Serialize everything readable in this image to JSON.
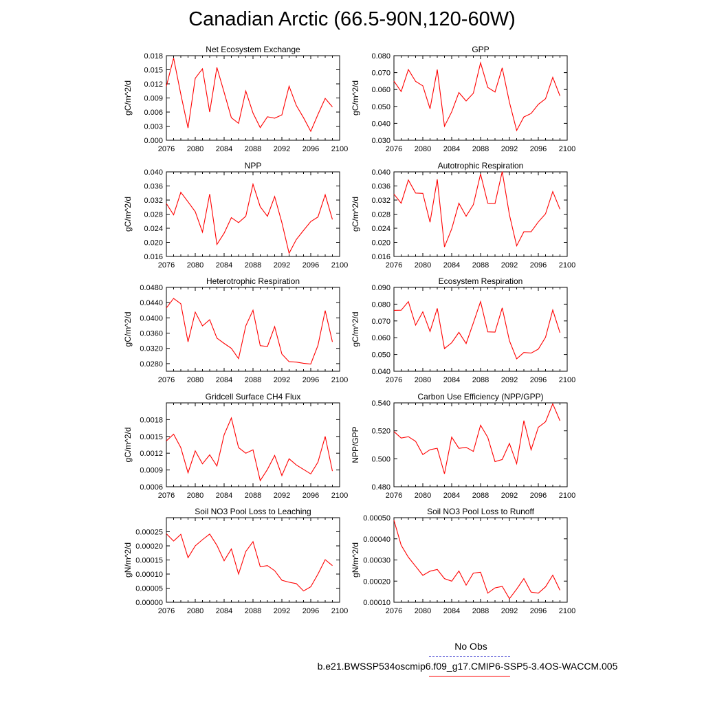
{
  "title": "Canadian Arctic (66.5-90N,120-60W)",
  "legend": {
    "items": [
      {
        "label": "No Obs",
        "color": "#3333cc",
        "style": "dashed"
      },
      {
        "label": "b.e21.BWSSP534oscmip6.f09_g17.CMIP6-SSP5-3.4OS-WACCM.005",
        "color": "#ff0000",
        "style": "solid"
      }
    ]
  },
  "chart_data": [
    {
      "type": "line",
      "title": "Net Ecosystem Exchange",
      "ylabel": "gC/m^2/d",
      "xlim": [
        2076,
        2100
      ],
      "xticks": [
        "2076",
        "2080",
        "2084",
        "2088",
        "2092",
        "2096",
        "2100"
      ],
      "ylim": [
        0.0,
        0.018
      ],
      "yticks": [
        "0.000",
        "0.003",
        "0.006",
        "0.009",
        "0.012",
        "0.015",
        "0.018"
      ],
      "x": [
        2076,
        2077,
        2078,
        2079,
        2080,
        2081,
        2082,
        2083,
        2084,
        2085,
        2086,
        2087,
        2088,
        2089,
        2090,
        2091,
        2092,
        2093,
        2094,
        2095,
        2096,
        2097,
        2098,
        2099
      ],
      "series": [
        {
          "values": [
            0.0115,
            0.0175,
            0.0098,
            0.0026,
            0.0132,
            0.0152,
            0.006,
            0.0155,
            0.0102,
            0.0048,
            0.0036,
            0.0105,
            0.0058,
            0.0027,
            0.005,
            0.0047,
            0.0054,
            0.0115,
            0.0074,
            0.0048,
            0.0019,
            0.0055,
            0.0089,
            0.0071
          ],
          "color": "#ff0000"
        }
      ]
    },
    {
      "type": "line",
      "title": "GPP",
      "ylabel": "gC/m^2/d",
      "xlim": [
        2076,
        2100
      ],
      "xticks": [
        "2076",
        "2080",
        "2084",
        "2088",
        "2092",
        "2096",
        "2100"
      ],
      "ylim": [
        0.03,
        0.08
      ],
      "yticks": [
        "0.030",
        "0.040",
        "0.050",
        "0.060",
        "0.070",
        "0.080"
      ],
      "x": [
        2076,
        2077,
        2078,
        2079,
        2080,
        2081,
        2082,
        2083,
        2084,
        2085,
        2086,
        2087,
        2088,
        2089,
        2090,
        2091,
        2092,
        2093,
        2094,
        2095,
        2096,
        2097,
        2098,
        2099
      ],
      "series": [
        {
          "values": [
            0.065,
            0.0588,
            0.0718,
            0.0648,
            0.0622,
            0.0486,
            0.0718,
            0.0383,
            0.0468,
            0.0582,
            0.0532,
            0.0578,
            0.0758,
            0.0612,
            0.0585,
            0.0728,
            0.0525,
            0.0358,
            0.0438,
            0.0458,
            0.0512,
            0.0545,
            0.0672,
            0.0562
          ],
          "color": "#ff0000"
        }
      ]
    },
    {
      "type": "line",
      "title": "NPP",
      "ylabel": "gC/m^2/d",
      "xlim": [
        2076,
        2100
      ],
      "xticks": [
        "2076",
        "2080",
        "2084",
        "2088",
        "2092",
        "2096",
        "2100"
      ],
      "ylim": [
        0.016,
        0.04
      ],
      "yticks": [
        "0.016",
        "0.020",
        "0.024",
        "0.028",
        "0.032",
        "0.036",
        "0.040"
      ],
      "x": [
        2076,
        2077,
        2078,
        2079,
        2080,
        2081,
        2082,
        2083,
        2084,
        2085,
        2086,
        2087,
        2088,
        2089,
        2090,
        2091,
        2092,
        2093,
        2094,
        2095,
        2096,
        2097,
        2098,
        2099
      ],
      "series": [
        {
          "values": [
            0.031,
            0.0278,
            0.0342,
            0.0315,
            0.0287,
            0.0229,
            0.0337,
            0.0194,
            0.0226,
            0.027,
            0.0256,
            0.0274,
            0.0365,
            0.0301,
            0.0274,
            0.033,
            0.0256,
            0.0169,
            0.0208,
            0.0234,
            0.0259,
            0.0272,
            0.0335,
            0.0265
          ],
          "color": "#ff0000"
        }
      ]
    },
    {
      "type": "line",
      "title": "Autotrophic Respiration",
      "ylabel": "gC/m^2/d",
      "xlim": [
        2076,
        2100
      ],
      "xticks": [
        "2076",
        "2080",
        "2084",
        "2088",
        "2092",
        "2096",
        "2100"
      ],
      "ylim": [
        0.016,
        0.04
      ],
      "yticks": [
        "0.016",
        "0.020",
        "0.024",
        "0.028",
        "0.032",
        "0.036",
        "0.040"
      ],
      "x": [
        2076,
        2077,
        2078,
        2079,
        2080,
        2081,
        2082,
        2083,
        2084,
        2085,
        2086,
        2087,
        2088,
        2089,
        2090,
        2091,
        2092,
        2093,
        2094,
        2095,
        2096,
        2097,
        2098,
        2099
      ],
      "series": [
        {
          "values": [
            0.0337,
            0.0311,
            0.0377,
            0.034,
            0.0339,
            0.0257,
            0.0379,
            0.0187,
            0.0238,
            0.0311,
            0.0274,
            0.0307,
            0.0394,
            0.0311,
            0.031,
            0.0401,
            0.0278,
            0.019,
            0.023,
            0.023,
            0.0258,
            0.0281,
            0.0344,
            0.0294
          ],
          "color": "#ff0000"
        }
      ]
    },
    {
      "type": "line",
      "title": "Heterotrophic Respiration",
      "ylabel": "gC/m^2/d",
      "xlim": [
        2076,
        2100
      ],
      "xticks": [
        "2076",
        "2080",
        "2084",
        "2088",
        "2092",
        "2096",
        "2100"
      ],
      "ylim": [
        0.026,
        0.048
      ],
      "yticks": [
        "0.0280",
        "0.0320",
        "0.0360",
        "0.0400",
        "0.0440",
        "0.0480"
      ],
      "x": [
        2076,
        2077,
        2078,
        2079,
        2080,
        2081,
        2082,
        2083,
        2084,
        2085,
        2086,
        2087,
        2088,
        2089,
        2090,
        2091,
        2092,
        2093,
        2094,
        2095,
        2096,
        2097,
        2098,
        2099
      ],
      "series": [
        {
          "values": [
            0.0426,
            0.0451,
            0.0437,
            0.0337,
            0.0415,
            0.0379,
            0.0395,
            0.0347,
            0.0333,
            0.032,
            0.0293,
            0.0379,
            0.042,
            0.0327,
            0.0325,
            0.0377,
            0.0305,
            0.0285,
            0.0284,
            0.0281,
            0.0279,
            0.0328,
            0.0419,
            0.0337
          ],
          "color": "#ff0000"
        }
      ]
    },
    {
      "type": "line",
      "title": "Ecosystem Respiration",
      "ylabel": "gC/m^2/d",
      "xlim": [
        2076,
        2100
      ],
      "xticks": [
        "2076",
        "2080",
        "2084",
        "2088",
        "2092",
        "2096",
        "2100"
      ],
      "ylim": [
        0.04,
        0.09
      ],
      "yticks": [
        "0.040",
        "0.050",
        "0.060",
        "0.070",
        "0.080",
        "0.090"
      ],
      "x": [
        2076,
        2077,
        2078,
        2079,
        2080,
        2081,
        2082,
        2083,
        2084,
        2085,
        2086,
        2087,
        2088,
        2089,
        2090,
        2091,
        2092,
        2093,
        2094,
        2095,
        2096,
        2097,
        2098,
        2099
      ],
      "series": [
        {
          "values": [
            0.0763,
            0.0764,
            0.0815,
            0.0675,
            0.0754,
            0.0637,
            0.0775,
            0.0535,
            0.057,
            0.0632,
            0.0565,
            0.0688,
            0.0815,
            0.0635,
            0.0633,
            0.0778,
            0.0582,
            0.0474,
            0.0512,
            0.0508,
            0.0532,
            0.0602,
            0.0765,
            0.063
          ],
          "color": "#ff0000"
        }
      ]
    },
    {
      "type": "line",
      "title": "Gridcell Surface CH4 Flux",
      "ylabel": "gC/m^2/d",
      "xlim": [
        2076,
        2100
      ],
      "xticks": [
        "2076",
        "2080",
        "2084",
        "2088",
        "2092",
        "2096",
        "2100"
      ],
      "ylim": [
        0.0006,
        0.0021
      ],
      "yticks": [
        "0.0006",
        "0.0009",
        "0.0012",
        "0.0015",
        "0.0018"
      ],
      "x": [
        2076,
        2077,
        2078,
        2079,
        2080,
        2081,
        2082,
        2083,
        2084,
        2085,
        2086,
        2087,
        2088,
        2089,
        2090,
        2091,
        2092,
        2093,
        2094,
        2095,
        2096,
        2097,
        2098,
        2099
      ],
      "series": [
        {
          "values": [
            0.00142,
            0.00154,
            0.0013,
            0.00085,
            0.00124,
            0.00101,
            0.00117,
            0.00097,
            0.00153,
            0.00183,
            0.0013,
            0.0012,
            0.00126,
            0.00071,
            0.00091,
            0.00116,
            0.0008,
            0.0011,
            0.00099,
            0.00091,
            0.00083,
            0.00104,
            0.0015,
            0.00088
          ],
          "color": "#ff0000"
        }
      ]
    },
    {
      "type": "line",
      "title": "Carbon Use Efficiency (NPP/GPP)",
      "ylabel": "NPP/GPP",
      "xlim": [
        2076,
        2100
      ],
      "xticks": [
        "2076",
        "2080",
        "2084",
        "2088",
        "2092",
        "2096",
        "2100"
      ],
      "ylim": [
        0.48,
        0.54
      ],
      "yticks": [
        "0.480",
        "0.500",
        "0.520",
        "0.540"
      ],
      "x": [
        2076,
        2077,
        2078,
        2079,
        2080,
        2081,
        2082,
        2083,
        2084,
        2085,
        2086,
        2087,
        2088,
        2089,
        2090,
        2091,
        2092,
        2093,
        2094,
        2095,
        2096,
        2097,
        2098,
        2099
      ],
      "series": [
        {
          "values": [
            0.5195,
            0.5148,
            0.5158,
            0.5125,
            0.503,
            0.5065,
            0.5075,
            0.4893,
            0.5155,
            0.5075,
            0.5082,
            0.5053,
            0.524,
            0.5153,
            0.498,
            0.4995,
            0.511,
            0.4965,
            0.5273,
            0.5064,
            0.5225,
            0.5265,
            0.5393,
            0.5272
          ],
          "color": "#ff0000"
        }
      ]
    },
    {
      "type": "line",
      "title": "Soil NO3 Pool Loss to Leaching",
      "ylabel": "gN/m^2/d",
      "xlim": [
        2076,
        2100
      ],
      "xticks": [
        "2076",
        "2080",
        "2084",
        "2088",
        "2092",
        "2096",
        "2100"
      ],
      "ylim": [
        0.0,
        0.0003
      ],
      "yticks": [
        "0.00000",
        "0.00005",
        "0.00010",
        "0.00015",
        "0.00020",
        "0.00025"
      ],
      "x": [
        2076,
        2077,
        2078,
        2079,
        2080,
        2081,
        2082,
        2083,
        2084,
        2085,
        2086,
        2087,
        2088,
        2089,
        2090,
        2091,
        2092,
        2093,
        2094,
        2095,
        2096,
        2097,
        2098,
        2099
      ],
      "series": [
        {
          "values": [
            0.000243,
            0.000217,
            0.000241,
            0.000158,
            0.0002,
            0.000222,
            0.000242,
            0.000202,
            0.000147,
            0.000189,
            0.0001,
            0.00018,
            0.000215,
            0.000126,
            0.00013,
            0.000112,
            7.8e-05,
            7.1e-05,
            6.6e-05,
            4e-05,
            5.5e-05,
            0.0001,
            0.000151,
            0.00013
          ],
          "color": "#ff0000"
        }
      ]
    },
    {
      "type": "line",
      "title": "Soil NO3 Pool Loss to Runoff",
      "ylabel": "gN/m^2/d",
      "xlim": [
        2076,
        2100
      ],
      "xticks": [
        "2076",
        "2080",
        "2084",
        "2088",
        "2092",
        "2096",
        "2100"
      ],
      "ylim": [
        0.0001,
        0.0005
      ],
      "yticks": [
        "0.00010",
        "0.00020",
        "0.00030",
        "0.00040",
        "0.00050"
      ],
      "x": [
        2076,
        2077,
        2078,
        2079,
        2080,
        2081,
        2082,
        2083,
        2084,
        2085,
        2086,
        2087,
        2088,
        2089,
        2090,
        2091,
        2092,
        2093,
        2094,
        2095,
        2096,
        2097,
        2098,
        2099
      ],
      "series": [
        {
          "values": [
            0.000488,
            0.00037,
            0.000313,
            0.00027,
            0.000227,
            0.000247,
            0.000255,
            0.000212,
            0.0002,
            0.000248,
            0.000181,
            0.000238,
            0.000242,
            0.000143,
            0.000168,
            0.000175,
            0.000117,
            0.000162,
            0.000212,
            0.000148,
            0.000143,
            0.000173,
            0.000228,
            0.000157
          ],
          "color": "#ff0000"
        }
      ]
    }
  ]
}
